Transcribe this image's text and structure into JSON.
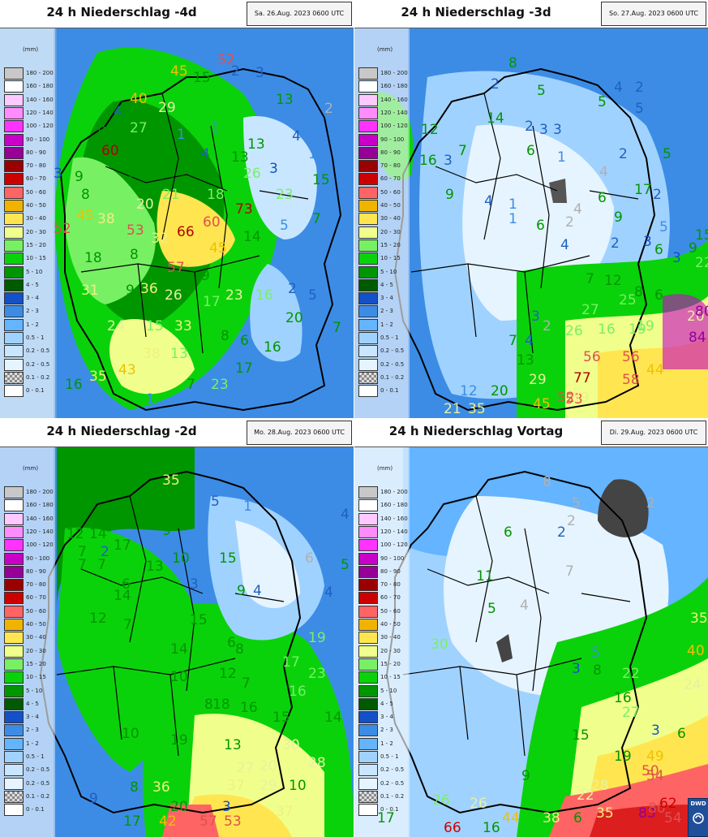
{
  "legend": {
    "unit": "(mm)",
    "classes": [
      {
        "label": "180 - 200",
        "color": "#c8c8c8"
      },
      {
        "label": "160 - 180",
        "color": "#ffffff"
      },
      {
        "label": "140 - 160",
        "color": "#ffc8ff"
      },
      {
        "label": "120 - 140",
        "color": "#ff8cff"
      },
      {
        "label": "100 - 120",
        "color": "#ff32ff"
      },
      {
        "label": "90 - 100",
        "color": "#c800c8"
      },
      {
        "label": "80 - 90",
        "color": "#960096"
      },
      {
        "label": "70 - 80",
        "color": "#9a0000"
      },
      {
        "label": "60 - 70",
        "color": "#cd0000"
      },
      {
        "label": "50 - 60",
        "color": "#ff6464"
      },
      {
        "label": "40 - 50",
        "color": "#f0b400"
      },
      {
        "label": "30 - 40",
        "color": "#ffe650"
      },
      {
        "label": "20 - 30",
        "color": "#f0ff8c"
      },
      {
        "label": "15 - 20",
        "color": "#78f064"
      },
      {
        "label": "10 - 15",
        "color": "#0ad20a"
      },
      {
        "label": "5 - 10",
        "color": "#009600"
      },
      {
        "label": "4 - 5",
        "color": "#005a00"
      },
      {
        "label": "3 - 4",
        "color": "#1450c8"
      },
      {
        "label": "2 - 3",
        "color": "#3c8ce6"
      },
      {
        "label": "1 - 2",
        "color": "#64b4ff"
      },
      {
        "label": "0.5 - 1",
        "color": "#a0d2ff"
      },
      {
        "label": "0.2 - 0.5",
        "color": "#c8e6ff"
      },
      {
        "label": "0.2 - 0.5",
        "color": "#e6f4ff"
      },
      {
        "label": "0.1 - 0.2",
        "color": "checker"
      },
      {
        "label": "0 - 0.1",
        "color": "#ffffff"
      }
    ]
  },
  "panels": [
    {
      "title": "24 h Niederschlag -4d",
      "date": "Sa. 26.Aug. 2023 0600 UTC",
      "labels": [
        {
          "t": "45",
          "c": "#f0c000"
        },
        {
          "t": "52",
          "c": "#e05050"
        },
        {
          "t": "15",
          "c": "#009600"
        },
        {
          "t": "2",
          "c": "#2060c0"
        },
        {
          "t": "3",
          "c": "#2060c0"
        },
        {
          "t": "40",
          "c": "#f0c000"
        },
        {
          "t": "4",
          "c": "#2060c0"
        },
        {
          "t": "29",
          "c": "#e8f0a0"
        },
        {
          "t": "13",
          "c": "#009600"
        },
        {
          "t": "2",
          "c": "#b0b0b0"
        },
        {
          "t": "6",
          "c": "#009600"
        },
        {
          "t": "27",
          "c": "#78f064"
        },
        {
          "t": "1",
          "c": "#3c8ce6"
        },
        {
          "t": "1",
          "c": "#3c8ce6"
        },
        {
          "t": "4",
          "c": "#2060c0"
        },
        {
          "t": "60",
          "c": "#b00000"
        },
        {
          "t": "8",
          "c": "#009600"
        },
        {
          "t": "4",
          "c": "#2060c0"
        },
        {
          "t": "13",
          "c": "#009600"
        },
        {
          "t": "1",
          "c": "#3c8ce6"
        },
        {
          "t": "3",
          "c": "#1450c8"
        },
        {
          "t": "9",
          "c": "#009600"
        },
        {
          "t": "7",
          "c": "#009600"
        },
        {
          "t": "15",
          "c": "#009600"
        },
        {
          "t": "13",
          "c": "#009600"
        },
        {
          "t": "26",
          "c": "#78f064"
        },
        {
          "t": "3",
          "c": "#1450c8"
        },
        {
          "t": "15",
          "c": "#009600"
        },
        {
          "t": "8",
          "c": "#009600"
        },
        {
          "t": "13",
          "c": "#78f064"
        },
        {
          "t": "21",
          "c": "#78f064"
        },
        {
          "t": "18",
          "c": "#78f064"
        },
        {
          "t": "23",
          "c": "#78f064"
        },
        {
          "t": "45",
          "c": "#f0c000"
        },
        {
          "t": "38",
          "c": "#f0f080"
        },
        {
          "t": "20",
          "c": "#e8f0a0"
        },
        {
          "t": "73",
          "c": "#b00000"
        },
        {
          "t": "5",
          "c": "#3c8ce6"
        },
        {
          "t": "7",
          "c": "#009600"
        },
        {
          "t": "52",
          "c": "#e05050"
        },
        {
          "t": "53",
          "c": "#e05050"
        },
        {
          "t": "32",
          "c": "#f0f080"
        },
        {
          "t": "66",
          "c": "#b00000"
        },
        {
          "t": "60",
          "c": "#e05050"
        },
        {
          "t": "45",
          "c": "#f0c000"
        },
        {
          "t": "14",
          "c": "#009600"
        },
        {
          "t": "18",
          "c": "#009600"
        },
        {
          "t": "8",
          "c": "#009600"
        },
        {
          "t": "57",
          "c": "#e05050"
        },
        {
          "t": "9",
          "c": "#009600"
        },
        {
          "t": "31",
          "c": "#f0f080"
        },
        {
          "t": "9",
          "c": "#009600"
        },
        {
          "t": "36",
          "c": "#f0f080"
        },
        {
          "t": "26",
          "c": "#e8f0a0"
        },
        {
          "t": "17",
          "c": "#78f064"
        },
        {
          "t": "23",
          "c": "#e8f0a0"
        },
        {
          "t": "16",
          "c": "#78f064"
        },
        {
          "t": "2",
          "c": "#2060c0"
        },
        {
          "t": "5",
          "c": "#2060c0"
        },
        {
          "t": "24",
          "c": "#e8f0a0"
        },
        {
          "t": "15",
          "c": "#78f064"
        },
        {
          "t": "33",
          "c": "#f0f080"
        },
        {
          "t": "20",
          "c": "#009600"
        },
        {
          "t": "8",
          "c": "#009600"
        },
        {
          "t": "6",
          "c": "#009600"
        },
        {
          "t": "16",
          "c": "#009600"
        },
        {
          "t": "7",
          "c": "#009600"
        },
        {
          "t": "38",
          "c": "#f0f080"
        },
        {
          "t": "13",
          "c": "#78f064"
        },
        {
          "t": "43",
          "c": "#f0c000"
        },
        {
          "t": "35",
          "c": "#f0f080"
        },
        {
          "t": "17",
          "c": "#009600"
        },
        {
          "t": "16",
          "c": "#009600"
        },
        {
          "t": "7",
          "c": "#009600"
        },
        {
          "t": "23",
          "c": "#78f064"
        },
        {
          "t": "9",
          "c": "#3c8ce6"
        },
        {
          "t": "1",
          "c": "#3c8ce6"
        }
      ]
    },
    {
      "title": "24 h Niederschlag -3d",
      "date": "So. 27.Aug. 2023 0600 UTC",
      "labels": [
        {
          "t": "8",
          "c": "#009600"
        },
        {
          "t": "2",
          "c": "#2060c0"
        },
        {
          "t": "5",
          "c": "#009600"
        },
        {
          "t": "4",
          "c": "#2060c0"
        },
        {
          "t": "2",
          "c": "#2060c0"
        },
        {
          "t": "5",
          "c": "#009600"
        },
        {
          "t": "5",
          "c": "#2060c0"
        },
        {
          "t": "12",
          "c": "#009600"
        },
        {
          "t": "14",
          "c": "#009600"
        },
        {
          "t": "2",
          "c": "#2060c0"
        },
        {
          "t": "3",
          "c": "#2060c0"
        },
        {
          "t": "3",
          "c": "#2060c0"
        },
        {
          "t": "16",
          "c": "#009600"
        },
        {
          "t": "3",
          "c": "#2060c0"
        },
        {
          "t": "7",
          "c": "#009600"
        },
        {
          "t": "6",
          "c": "#009600"
        },
        {
          "t": "1",
          "c": "#3c8ce6"
        },
        {
          "t": "4",
          "c": "#b0b0b0"
        },
        {
          "t": "2",
          "c": "#2060c0"
        },
        {
          "t": "5",
          "c": "#009600"
        },
        {
          "t": "6",
          "c": "#009600"
        },
        {
          "t": "9",
          "c": "#009600"
        },
        {
          "t": "4",
          "c": "#2060c0"
        },
        {
          "t": "1",
          "c": "#3c8ce6"
        },
        {
          "t": "17",
          "c": "#009600"
        },
        {
          "t": "2",
          "c": "#2060c0"
        },
        {
          "t": "4",
          "c": "#b0b0b0"
        },
        {
          "t": "3",
          "c": "#1450c8"
        },
        {
          "t": "1",
          "c": "#3c8ce6"
        },
        {
          "t": "6",
          "c": "#009600"
        },
        {
          "t": "9",
          "c": "#009600"
        },
        {
          "t": "15",
          "c": "#009600"
        },
        {
          "t": "5",
          "c": "#3c8ce6"
        },
        {
          "t": "2",
          "c": "#b0b0b0"
        },
        {
          "t": "4",
          "c": "#2060c0"
        },
        {
          "t": "2",
          "c": "#2060c0"
        },
        {
          "t": "6",
          "c": "#009600"
        },
        {
          "t": "22",
          "c": "#78f064"
        },
        {
          "t": "3",
          "c": "#1450c8"
        },
        {
          "t": "9",
          "c": "#009600"
        },
        {
          "t": "7",
          "c": "#009600"
        },
        {
          "t": "12",
          "c": "#009600"
        },
        {
          "t": "25",
          "c": "#78f064"
        },
        {
          "t": "8",
          "c": "#009600"
        },
        {
          "t": "6",
          "c": "#009600"
        },
        {
          "t": "27",
          "c": "#78f064"
        },
        {
          "t": "19",
          "c": "#78f064"
        },
        {
          "t": "20",
          "c": "#e8f0a0"
        },
        {
          "t": "80",
          "c": "#960096"
        },
        {
          "t": "3",
          "c": "#2060c0"
        },
        {
          "t": "2",
          "c": "#b0b0b0"
        },
        {
          "t": "7",
          "c": "#009600"
        },
        {
          "t": "26",
          "c": "#78f064"
        },
        {
          "t": "16",
          "c": "#78f064"
        },
        {
          "t": "19",
          "c": "#78f064"
        },
        {
          "t": "84",
          "c": "#960096"
        },
        {
          "t": "4",
          "c": "#2060c0"
        },
        {
          "t": "13",
          "c": "#009600"
        },
        {
          "t": "56",
          "c": "#e05050"
        },
        {
          "t": "56",
          "c": "#e05050"
        },
        {
          "t": "44",
          "c": "#f0c000"
        },
        {
          "t": "29",
          "c": "#e8f0a0"
        },
        {
          "t": "77",
          "c": "#b00000"
        },
        {
          "t": "58",
          "c": "#e05050"
        },
        {
          "t": "53",
          "c": "#e05050"
        },
        {
          "t": "12",
          "c": "#3c8ce6"
        },
        {
          "t": "20",
          "c": "#009600"
        },
        {
          "t": "39",
          "c": "#f0f080"
        },
        {
          "t": "45",
          "c": "#f0c000"
        },
        {
          "t": "21",
          "c": "#e8f0a0"
        },
        {
          "t": "35",
          "c": "#f0f080"
        },
        {
          "t": "52",
          "c": "#e05050"
        }
      ]
    },
    {
      "title": "24 h Niederschlag -2d",
      "date": "Mo. 28.Aug. 2023 0600 UTC",
      "labels": [
        {
          "t": "35",
          "c": "#f0f080"
        },
        {
          "t": "5",
          "c": "#009600"
        },
        {
          "t": "5",
          "c": "#2060c0"
        },
        {
          "t": "1",
          "c": "#3c8ce6"
        },
        {
          "t": "4",
          "c": "#2060c0"
        },
        {
          "t": "12",
          "c": "#009600"
        },
        {
          "t": "14",
          "c": "#009600"
        },
        {
          "t": "9",
          "c": "#009600"
        },
        {
          "t": "7",
          "c": "#009600"
        },
        {
          "t": "2",
          "c": "#2060c0"
        },
        {
          "t": "17",
          "c": "#009600"
        },
        {
          "t": "10",
          "c": "#009600"
        },
        {
          "t": "15",
          "c": "#009600"
        },
        {
          "t": "6",
          "c": "#b0b0b0"
        },
        {
          "t": "5",
          "c": "#009600"
        },
        {
          "t": "7",
          "c": "#009600"
        },
        {
          "t": "7",
          "c": "#009600"
        },
        {
          "t": "13",
          "c": "#009600"
        },
        {
          "t": "14",
          "c": "#009600"
        },
        {
          "t": "6",
          "c": "#009600"
        },
        {
          "t": "3",
          "c": "#2060c0"
        },
        {
          "t": "9",
          "c": "#009600"
        },
        {
          "t": "4",
          "c": "#2060c0"
        },
        {
          "t": "4",
          "c": "#2060c0"
        },
        {
          "t": "12",
          "c": "#009600"
        },
        {
          "t": "7",
          "c": "#009600"
        },
        {
          "t": "15",
          "c": "#009600"
        },
        {
          "t": "19",
          "c": "#78f064"
        },
        {
          "t": "14",
          "c": "#009600"
        },
        {
          "t": "6",
          "c": "#009600"
        },
        {
          "t": "8",
          "c": "#009600"
        },
        {
          "t": "17",
          "c": "#78f064"
        },
        {
          "t": "23",
          "c": "#78f064"
        },
        {
          "t": "10",
          "c": "#009600"
        },
        {
          "t": "12",
          "c": "#009600"
        },
        {
          "t": "7",
          "c": "#009600"
        },
        {
          "t": "16",
          "c": "#78f064"
        },
        {
          "t": "8",
          "c": "#009600"
        },
        {
          "t": "18",
          "c": "#009600"
        },
        {
          "t": "16",
          "c": "#009600"
        },
        {
          "t": "15",
          "c": "#009600"
        },
        {
          "t": "14",
          "c": "#009600"
        },
        {
          "t": "10",
          "c": "#009600"
        },
        {
          "t": "19",
          "c": "#009600"
        },
        {
          "t": "13",
          "c": "#009600"
        },
        {
          "t": "30",
          "c": "#e8f0a0"
        },
        {
          "t": "28",
          "c": "#e8f0a0"
        },
        {
          "t": "20",
          "c": "#e8f0a0"
        },
        {
          "t": "27",
          "c": "#e8f0a0"
        },
        {
          "t": "37",
          "c": "#f0f080"
        },
        {
          "t": "29",
          "c": "#e8f0a0"
        },
        {
          "t": "10",
          "c": "#009600"
        },
        {
          "t": "8",
          "c": "#009600"
        },
        {
          "t": "36",
          "c": "#f0f080"
        },
        {
          "t": "3",
          "c": "#1450c8"
        },
        {
          "t": "9",
          "c": "#2060c0"
        },
        {
          "t": "20",
          "c": "#009600"
        },
        {
          "t": "37",
          "c": "#f0f080"
        },
        {
          "t": "17",
          "c": "#009600"
        },
        {
          "t": "42",
          "c": "#f0c000"
        },
        {
          "t": "57",
          "c": "#e05050"
        },
        {
          "t": "53",
          "c": "#e05050"
        }
      ]
    },
    {
      "title": "24 h Niederschlag Vortag",
      "date": "Di. 29.Aug. 2023 0600 UTC",
      "labels": [
        {
          "t": "8",
          "c": "#b0b0b0"
        },
        {
          "t": "5",
          "c": "#b0b0b0"
        },
        {
          "t": "2",
          "c": "#b0b0b0"
        },
        {
          "t": "2",
          "c": "#2060c0"
        },
        {
          "t": "6",
          "c": "#009600"
        },
        {
          "t": "11",
          "c": "#009600"
        },
        {
          "t": "7",
          "c": "#b0b0b0"
        },
        {
          "t": "5",
          "c": "#009600"
        },
        {
          "t": "4",
          "c": "#b0b0b0"
        },
        {
          "t": "30",
          "c": "#78f064"
        },
        {
          "t": "35",
          "c": "#f0f080"
        },
        {
          "t": "40",
          "c": "#f0c000"
        },
        {
          "t": "5",
          "c": "#3c8ce6"
        },
        {
          "t": "3",
          "c": "#1450c8"
        },
        {
          "t": "8",
          "c": "#009600"
        },
        {
          "t": "22",
          "c": "#78f064"
        },
        {
          "t": "24",
          "c": "#e8f0a0"
        },
        {
          "t": "16",
          "c": "#009600"
        },
        {
          "t": "27",
          "c": "#78f064"
        },
        {
          "t": "3",
          "c": "#1450c8"
        },
        {
          "t": "6",
          "c": "#009600"
        },
        {
          "t": "15",
          "c": "#009600"
        },
        {
          "t": "19",
          "c": "#009600"
        },
        {
          "t": "49",
          "c": "#f0c000"
        },
        {
          "t": "50",
          "c": "#e05050"
        },
        {
          "t": "9",
          "c": "#009600"
        },
        {
          "t": "22",
          "c": "#e8f0a0"
        },
        {
          "t": "28",
          "c": "#e8f0a0"
        },
        {
          "t": "54",
          "c": "#e05050"
        },
        {
          "t": "26",
          "c": "#78f064"
        },
        {
          "t": "26",
          "c": "#e8f0a0"
        },
        {
          "t": "44",
          "c": "#f0c000"
        },
        {
          "t": "38",
          "c": "#f0f080"
        },
        {
          "t": "6",
          "c": "#009600"
        },
        {
          "t": "35",
          "c": "#f0f080"
        },
        {
          "t": "83",
          "c": "#960096"
        },
        {
          "t": "80",
          "c": "#e05050"
        },
        {
          "t": "62",
          "c": "#cd0000"
        },
        {
          "t": "54",
          "c": "#e05050"
        },
        {
          "t": "66",
          "c": "#cd0000"
        },
        {
          "t": "16",
          "c": "#009600"
        },
        {
          "t": "17",
          "c": "#009600"
        },
        {
          "t": "2",
          "c": "#b0b0b0"
        }
      ]
    }
  ],
  "logo": {
    "text": "DWD"
  }
}
